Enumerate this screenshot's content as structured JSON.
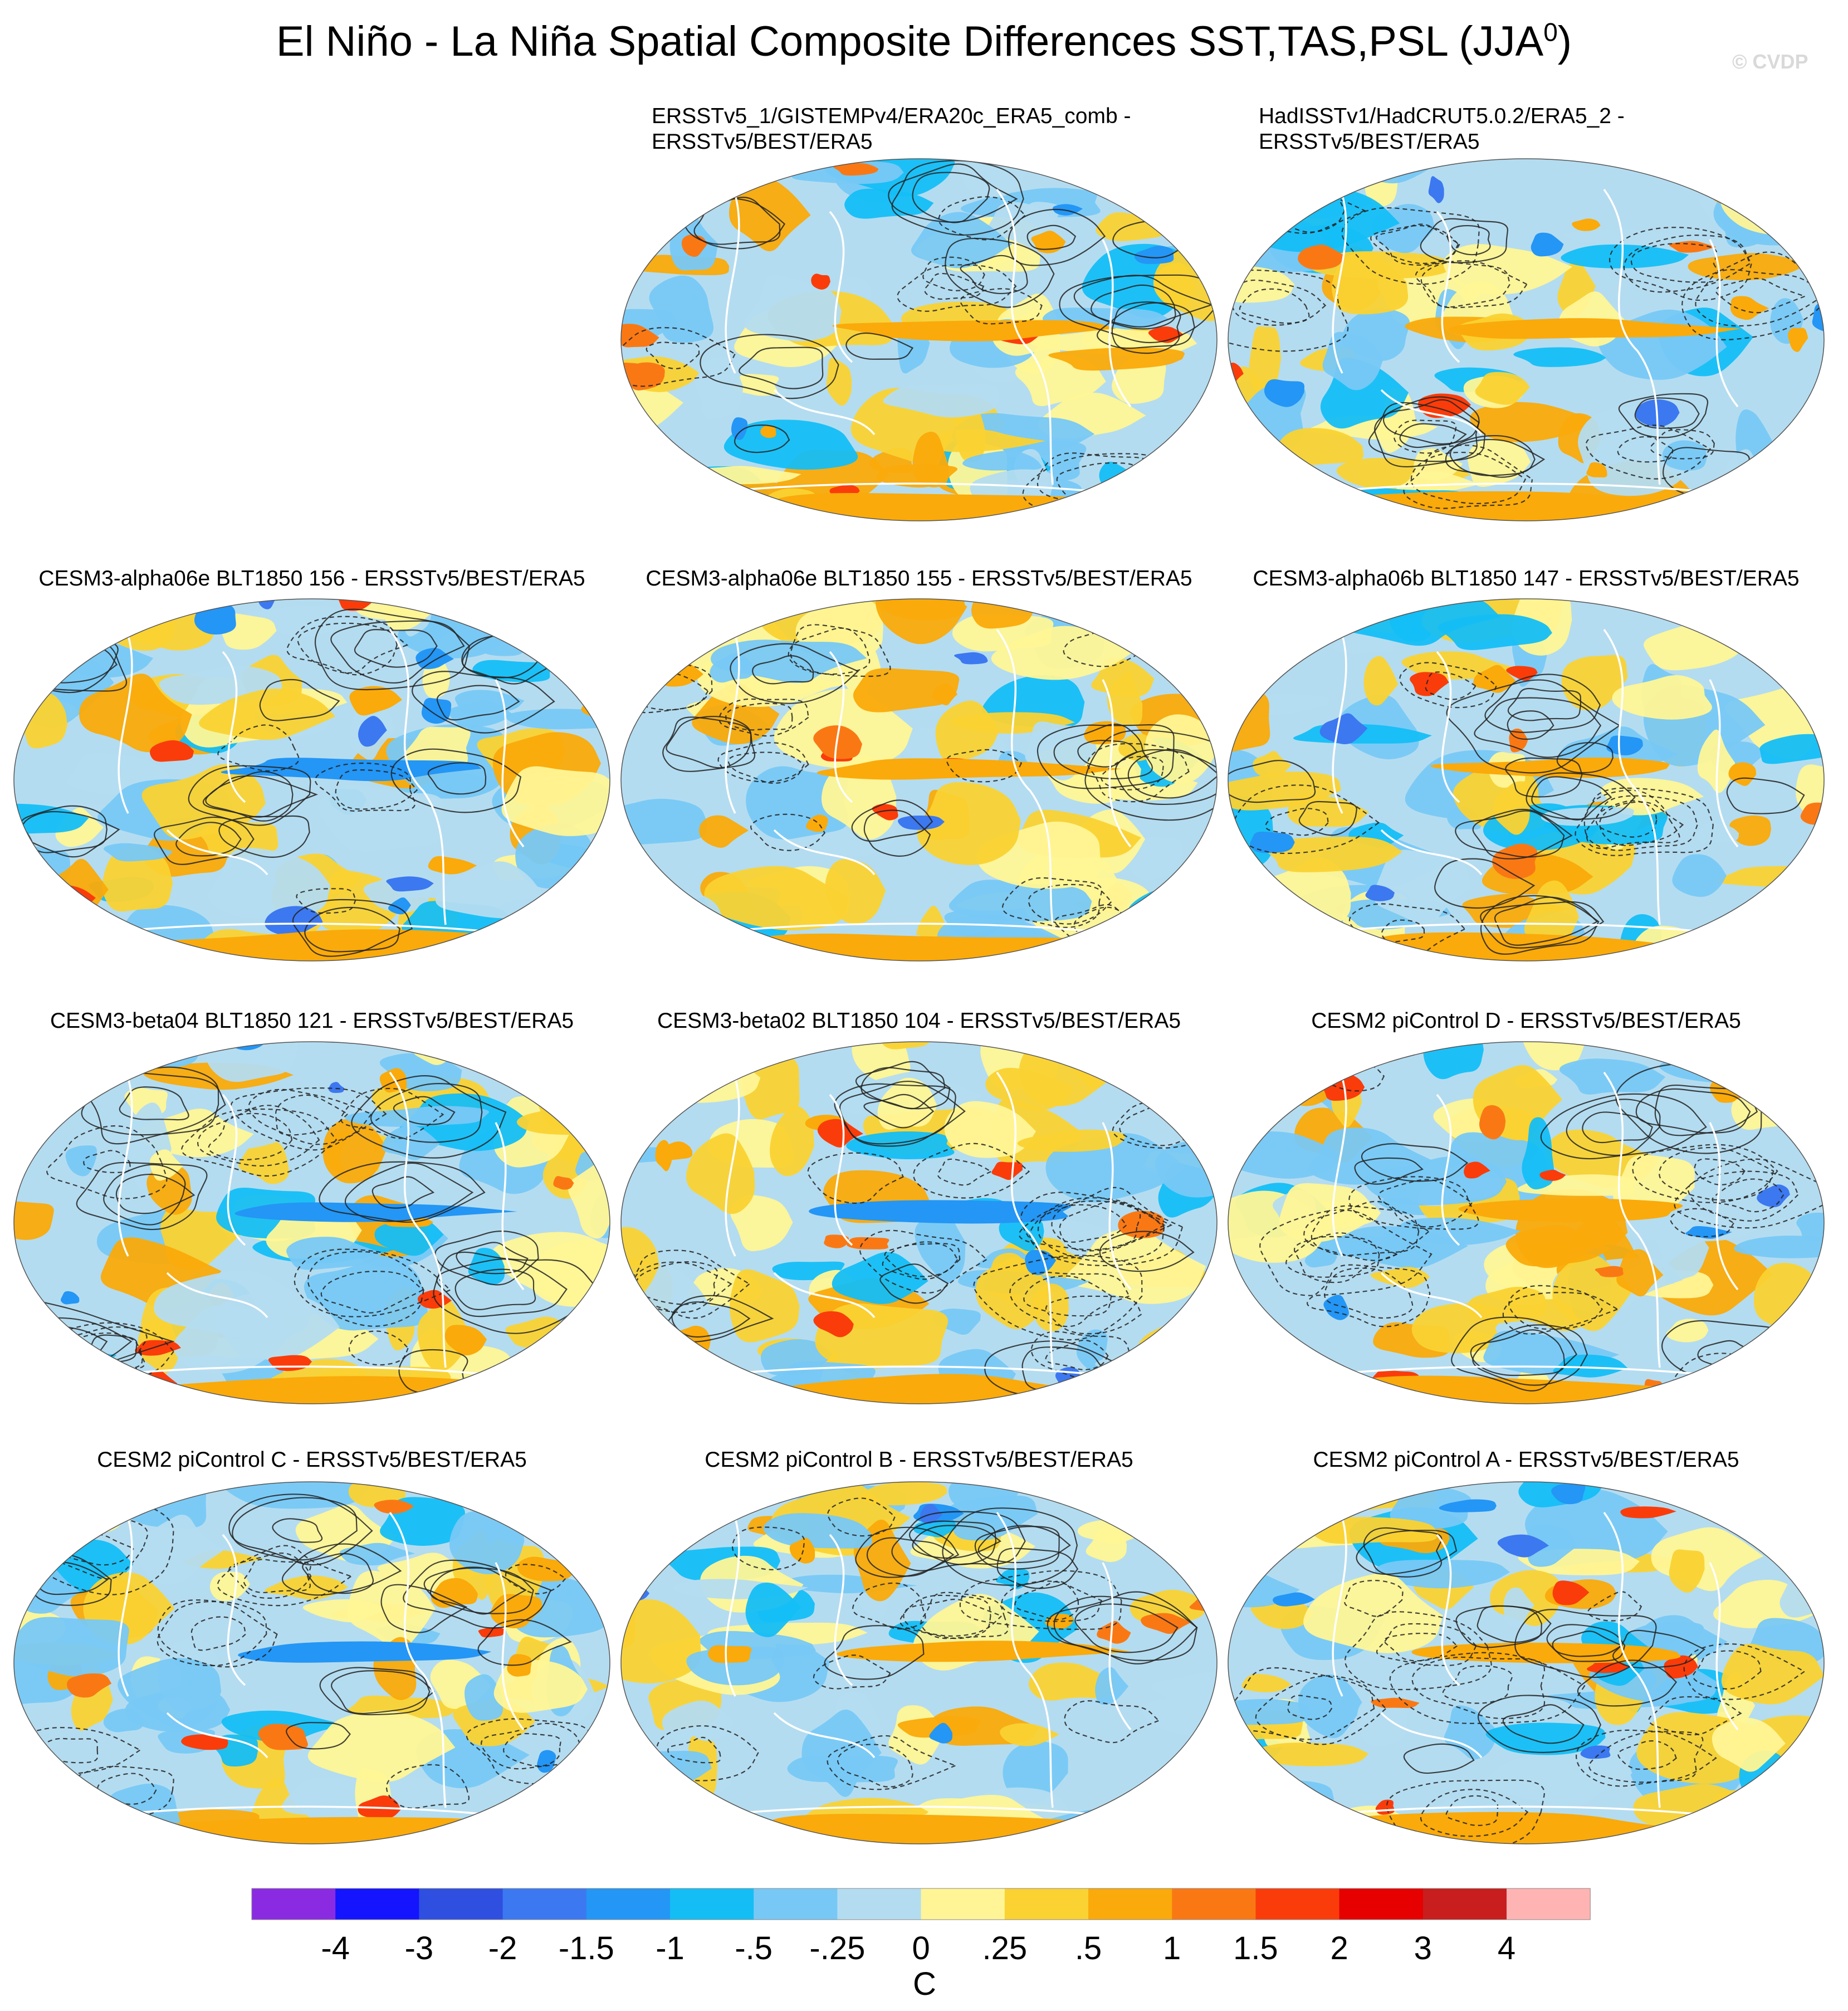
{
  "header": {
    "title": "El Niño - La Niña Spatial Composite Differences SST,TAS,PSL (JJA",
    "title_sup": "0",
    "title_close": ")",
    "watermark": "© CVDP"
  },
  "panels": [
    {
      "id": "p1",
      "row": 0,
      "col": 1,
      "title_line1": "ERSSTv5_1/GISTEMPv4/ERA20c_ERA5_comb -",
      "title_line2": "ERSSTv5/BEST/ERA5",
      "seed": 11
    },
    {
      "id": "p2",
      "row": 0,
      "col": 2,
      "title_line1": "HadISSTv1/HadCRUT5.0.2/ERA5_2 -",
      "title_line2": "ERSSTv5/BEST/ERA5",
      "seed": 23
    },
    {
      "id": "p3",
      "row": 1,
      "col": 0,
      "title_line1": "CESM3-alpha06e BLT1850 156 - ERSSTv5/BEST/ERA5",
      "title_line2": "",
      "seed": 37
    },
    {
      "id": "p4",
      "row": 1,
      "col": 1,
      "title_line1": "CESM3-alpha06e BLT1850 155 - ERSSTv5/BEST/ERA5",
      "title_line2": "",
      "seed": 41
    },
    {
      "id": "p5",
      "row": 1,
      "col": 2,
      "title_line1": "CESM3-alpha06b BLT1850 147 - ERSSTv5/BEST/ERA5",
      "title_line2": "",
      "seed": 53
    },
    {
      "id": "p6",
      "row": 2,
      "col": 0,
      "title_line1": "CESM3-beta04 BLT1850 121 - ERSSTv5/BEST/ERA5",
      "title_line2": "",
      "seed": 61
    },
    {
      "id": "p7",
      "row": 2,
      "col": 1,
      "title_line1": "CESM3-beta02 BLT1850 104 - ERSSTv5/BEST/ERA5",
      "title_line2": "",
      "seed": 73
    },
    {
      "id": "p8",
      "row": 2,
      "col": 2,
      "title_line1": "CESM2 piControl D - ERSSTv5/BEST/ERA5",
      "title_line2": "",
      "seed": 83
    },
    {
      "id": "p9",
      "row": 3,
      "col": 0,
      "title_line1": "CESM2 piControl C - ERSSTv5/BEST/ERA5",
      "title_line2": "",
      "seed": 97
    },
    {
      "id": "p10",
      "row": 3,
      "col": 1,
      "title_line1": "CESM2 piControl B - ERSSTv5/BEST/ERA5",
      "title_line2": "",
      "seed": 101
    },
    {
      "id": "p11",
      "row": 3,
      "col": 2,
      "title_line1": "CESM2 piControl A - ERSSTv5/BEST/ERA5",
      "title_line2": "",
      "seed": 113
    }
  ],
  "colorbar": {
    "unit": "C",
    "labels": [
      "-4",
      "-3",
      "-2",
      "-1.5",
      "-1",
      "-.5",
      "-.25",
      "0",
      ".25",
      ".5",
      "1",
      "1.5",
      "2",
      "3",
      "4"
    ],
    "colors": [
      "#8a2be2",
      "#1414ff",
      "#2e4fe0",
      "#3c78f0",
      "#2496f5",
      "#14bef5",
      "#78c8f5",
      "#b4dcf0",
      "#fff596",
      "#fad232",
      "#faaa0a",
      "#fa7814",
      "#fa3c0a",
      "#e60000",
      "#c81e1e",
      "#ffb4b4"
    ]
  }
}
